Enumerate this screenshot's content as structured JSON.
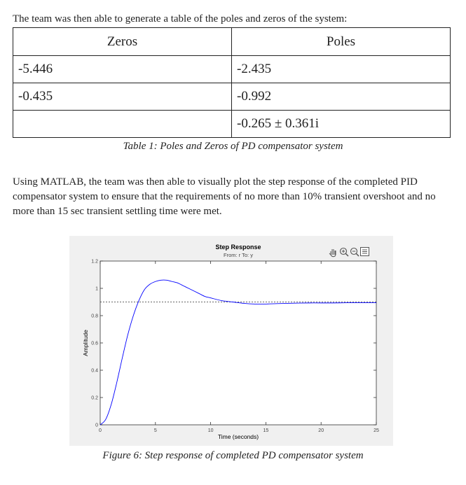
{
  "document": {
    "intro": "The team was then able to generate a table of the poles and zeros of the system:",
    "table": {
      "headers": [
        "Zeros",
        "Poles"
      ],
      "rows": [
        [
          "-5.446",
          "-2.435"
        ],
        [
          "-0.435",
          "-0.992"
        ],
        [
          "",
          "-0.265 ± 0.361i"
        ]
      ],
      "caption": "Table 1: Poles and Zeros of PD compensator system"
    },
    "paragraph": "Using MATLAB, the team was then able to visually plot the step response of the completed PID compensator system to ensure that the requirements of no more than 10% transient overshoot and no more than 15 sec transient settling time were met.",
    "figure_caption": "Figure 6: Step response of completed PD compensator system"
  },
  "chart_data": {
    "type": "line",
    "title": "Step Response",
    "subtitle": "From: r  To: y",
    "xlabel": "Time (seconds)",
    "ylabel": "Amplitude",
    "xlim": [
      0,
      25
    ],
    "ylim": [
      0,
      1.2
    ],
    "xticks": [
      0,
      5,
      10,
      15,
      20,
      25
    ],
    "yticks": [
      0,
      0.2,
      0.4,
      0.6,
      0.8,
      1,
      1.2
    ],
    "xtick_labels": [
      "0",
      "5",
      "10",
      "15",
      "20",
      "25"
    ],
    "ytick_labels": [
      "0",
      "0.2",
      "0.4",
      "0.6",
      "0.8",
      "1",
      "1.2"
    ],
    "steady_state": 0.9,
    "series": [
      {
        "x": [
          0,
          0.5,
          1,
          1.5,
          2,
          2.5,
          3,
          3.5,
          4,
          4.5,
          5,
          5.5,
          6,
          6.5,
          7,
          7.5,
          8,
          8.5,
          9,
          9.5,
          10,
          11,
          12,
          13,
          14,
          15,
          16,
          17,
          18,
          19,
          20,
          21,
          22,
          23,
          24,
          25
        ],
        "y": [
          0,
          0.04,
          0.15,
          0.31,
          0.49,
          0.66,
          0.8,
          0.91,
          0.99,
          1.03,
          1.05,
          1.06,
          1.06,
          1.05,
          1.04,
          1.02,
          1.0,
          0.98,
          0.96,
          0.94,
          0.93,
          0.91,
          0.9,
          0.89,
          0.885,
          0.885,
          0.888,
          0.89,
          0.892,
          0.893,
          0.893,
          0.893,
          0.894,
          0.895,
          0.895,
          0.895
        ],
        "color": "#0000ff"
      }
    ],
    "toolbar_icons": [
      "pan-hand-icon",
      "zoom-in-icon",
      "zoom-out-icon",
      "data-tips-icon"
    ],
    "grid": false,
    "legend": "none"
  }
}
